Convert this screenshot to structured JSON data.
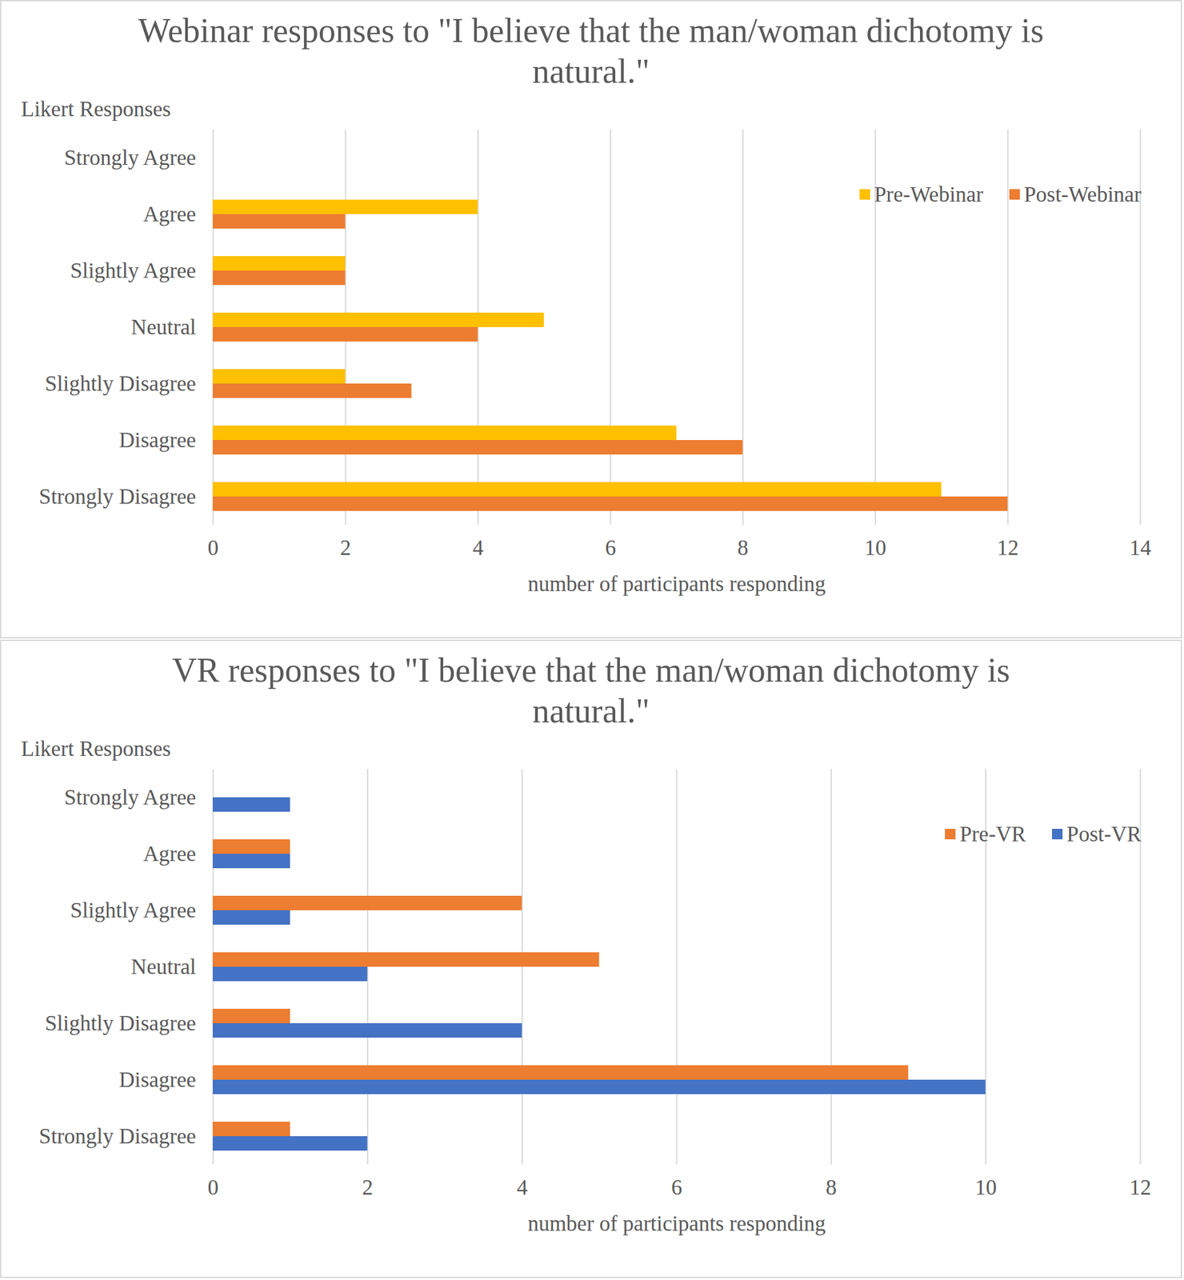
{
  "chart_data": [
    {
      "type": "bar",
      "orientation": "horizontal",
      "title": "Webinar responses to \"I believe that the man/woman dichotomy is natural.\"",
      "y_label": "Likert Responses",
      "x_label": "number of participants responding",
      "categories": [
        "Strongly Agree",
        "Agree",
        "Slightly Agree",
        "Neutral",
        "Slightly Disagree",
        "Disagree",
        "Strongly Disagree"
      ],
      "series": [
        {
          "name": "Pre-Webinar",
          "color": "#ffc000",
          "values": [
            0,
            4,
            2,
            5,
            2,
            7,
            11
          ]
        },
        {
          "name": "Post-Webinar",
          "color": "#ed7d31",
          "values": [
            0,
            2,
            2,
            4,
            3,
            8,
            12
          ]
        }
      ],
      "xlim": [
        0,
        14
      ],
      "xticks": [
        0,
        2,
        4,
        6,
        8,
        10,
        12,
        14
      ],
      "grid": true,
      "legend": "top-right"
    },
    {
      "type": "bar",
      "orientation": "horizontal",
      "title": "VR responses to \"I believe that the man/woman dichotomy is natural.\"",
      "y_label": "Likert Responses",
      "x_label": "number of participants responding",
      "categories": [
        "Strongly Agree",
        "Agree",
        "Slightly Agree",
        "Neutral",
        "Slightly Disagree",
        "Disagree",
        "Strongly Disagree"
      ],
      "series": [
        {
          "name": "Pre-VR",
          "color": "#ed7d31",
          "values": [
            0,
            1,
            4,
            5,
            1,
            9,
            1
          ]
        },
        {
          "name": "Post-VR",
          "color": "#4472c4",
          "values": [
            1,
            1,
            1,
            2,
            4,
            10,
            2
          ]
        }
      ],
      "xlim": [
        0,
        12
      ],
      "xticks": [
        0,
        2,
        4,
        6,
        8,
        10,
        12
      ],
      "grid": true,
      "legend": "top-right"
    }
  ]
}
